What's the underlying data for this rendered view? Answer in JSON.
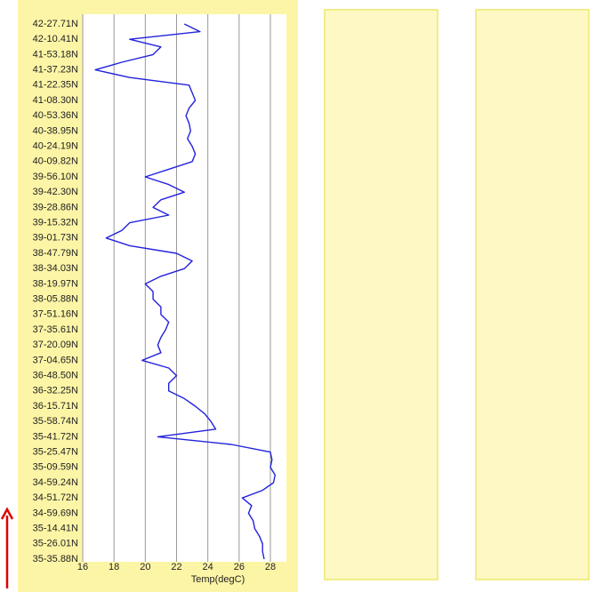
{
  "chart_data": {
    "type": "line",
    "xlabel": "Temp(degC)",
    "categories": [
      "42-27.71N",
      null,
      "42-10.41N",
      null,
      "41-53.18N",
      null,
      "41-37.23N",
      null,
      "41-22.35N",
      null,
      "41-08.30N",
      null,
      "40-53.36N",
      null,
      "40-38.95N",
      null,
      "40-24.19N",
      null,
      "40-09.82N",
      null,
      "39-56.10N",
      null,
      "39-42.30N",
      null,
      "39-28.86N",
      null,
      "39-15.32N",
      null,
      "39-01.73N",
      null,
      "38-47.79N",
      null,
      "38-34.03N",
      null,
      "38-19.97N",
      null,
      "38-05.88N",
      null,
      "37-51.16N",
      null,
      "37-35.61N",
      null,
      "37-20.09N",
      null,
      "37-04.65N",
      null,
      "36-48.50N",
      null,
      "36-32.25N",
      null,
      "36-15.71N",
      null,
      "35-58.74N",
      null,
      "35-41.72N",
      null,
      "35-25.47N",
      null,
      "35-09.59N",
      null,
      "34-59.24N",
      null,
      "34-51.72N",
      null,
      "34-59.69N",
      null,
      "35-14.41N",
      null,
      "35-26.01N",
      null,
      "35-35.88N"
    ],
    "values": [
      22.5,
      23.5,
      19,
      21,
      20.5,
      18.5,
      16.8,
      19,
      22.8,
      23,
      23.2,
      22.8,
      22.6,
      22.8,
      22.9,
      22.7,
      23,
      23.2,
      23,
      21.5,
      20,
      21.5,
      22.5,
      21,
      20.5,
      21.5,
      19,
      18.5,
      17.5,
      19,
      22,
      23,
      22.5,
      21,
      20,
      20.5,
      20.5,
      21,
      21,
      21.5,
      21.3,
      21,
      20.8,
      21,
      19.8,
      21.5,
      22,
      21.5,
      21.5,
      22.5,
      23.2,
      23.8,
      24.2,
      24.5,
      20.8,
      25.5,
      28,
      28.1,
      28,
      28.3,
      28.2,
      27.5,
      26.2,
      26.8,
      26.6,
      26.9,
      27,
      27.3,
      27.5,
      27.5,
      27.6
    ],
    "color": "#2222dd",
    "xlim": [
      16,
      29
    ],
    "xticks": [
      16,
      18,
      20,
      22,
      24,
      26,
      28
    ],
    "grid": true
  }
}
